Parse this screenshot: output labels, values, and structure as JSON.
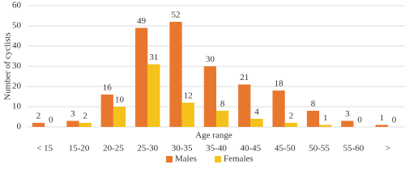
{
  "chart_data": {
    "type": "bar",
    "x_label": "Age range",
    "y_label": "Number of cyclists",
    "categories": [
      "< 15",
      "15-20",
      "20-25",
      "25-30",
      "30-35",
      "35-40",
      "40-45",
      "45-50",
      "50-55",
      "55-60",
      ">"
    ],
    "series": [
      {
        "name": "Males",
        "color": "#e8772e",
        "values": [
          2,
          3,
          16,
          49,
          52,
          30,
          21,
          18,
          8,
          3,
          1
        ]
      },
      {
        "name": "Females",
        "color": "#f5c21b",
        "values": [
          0,
          2,
          10,
          31,
          12,
          8,
          4,
          2,
          1,
          0,
          0
        ]
      }
    ],
    "ylim": [
      0,
      60
    ],
    "yticks": [
      0,
      10,
      20,
      30,
      40,
      50,
      60
    ],
    "grid": true,
    "legend": "bottom"
  }
}
